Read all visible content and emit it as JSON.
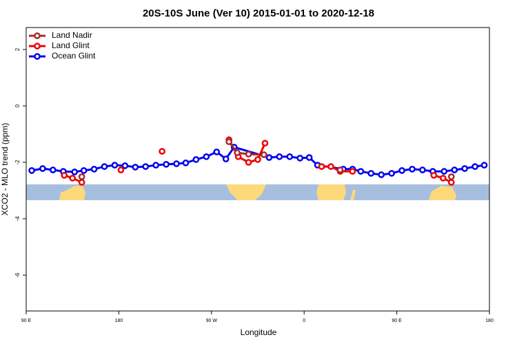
{
  "chart_data": {
    "type": "line",
    "title": "20S-10S June (Ver 10)   2015-01-01 to 2020-12-18",
    "x_label": "Longitude",
    "y_label": "XCO2 - MLO trend (ppm)",
    "xlim": [
      90,
      540
    ],
    "xticks": [
      {
        "value": 90,
        "label": "90 E"
      },
      {
        "value": 180,
        "label": "180"
      },
      {
        "value": 270,
        "label": "90 W"
      },
      {
        "value": 360,
        "label": "0"
      },
      {
        "value": 450,
        "label": "90 E"
      },
      {
        "value": 540,
        "label": "180"
      }
    ],
    "ylim": [
      -7.27,
      2.78
    ],
    "yticks": [
      2,
      0,
      -2,
      -4,
      -6
    ],
    "legend": "top-left",
    "series": [
      {
        "name": "Land Nadir",
        "color": "#a52a2a",
        "x": [
          144,
          null,
          287,
          295,
          306,
          321,
          null,
          395,
          null,
          503
        ],
        "values": [
          -2.51,
          null,
          -1.27,
          -1.66,
          -1.71,
          -1.73,
          null,
          -2.27,
          null,
          -2.51
        ]
      },
      {
        "name": "Land Glint",
        "color": "#ee0000",
        "x": [
          127,
          135,
          144,
          null,
          182,
          null,
          222,
          null,
          287,
          296,
          306,
          315,
          322,
          null,
          377,
          386,
          395,
          407,
          null,
          486,
          495,
          503
        ],
        "values": [
          -2.46,
          -2.56,
          -2.71,
          null,
          -2.27,
          null,
          -1.61,
          null,
          -1.2,
          -1.8,
          -2.0,
          -1.9,
          -1.32,
          null,
          -2.15,
          -2.15,
          -2.32,
          -2.32,
          null,
          -2.46,
          -2.56,
          -2.71
        ]
      },
      {
        "name": "Ocean Glint",
        "color": "#0000ee",
        "x": [
          95.4,
          106,
          116,
          126,
          137,
          146,
          156,
          166,
          176,
          186,
          196,
          206,
          216,
          226,
          236,
          245,
          255,
          265,
          275,
          284,
          292,
          326,
          336,
          346,
          356,
          365,
          373,
          398,
          407,
          415,
          425,
          435,
          445,
          455,
          465,
          475,
          485,
          496,
          506,
          516,
          526,
          535
        ],
        "values": [
          -2.29,
          -2.22,
          -2.27,
          -2.32,
          -2.34,
          -2.29,
          -2.24,
          -2.15,
          -2.1,
          -2.12,
          -2.17,
          -2.15,
          -2.1,
          -2.07,
          -2.05,
          -2.02,
          -1.9,
          -1.8,
          -1.63,
          -1.88,
          -1.46,
          -1.83,
          -1.8,
          -1.8,
          -1.85,
          -1.83,
          -2.1,
          -2.24,
          -2.24,
          -2.32,
          -2.39,
          -2.44,
          -2.39,
          -2.29,
          -2.24,
          -2.27,
          -2.32,
          -2.32,
          -2.27,
          -2.22,
          -2.15,
          -2.1
        ]
      }
    ]
  }
}
